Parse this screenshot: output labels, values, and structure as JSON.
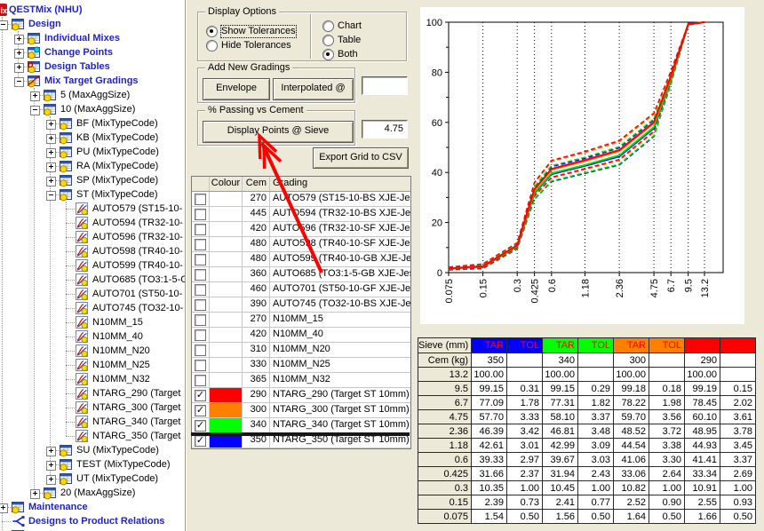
{
  "app_title": "QESTMix (NHU)",
  "colors": {
    "tree_blue": "#2222CC",
    "annotation_red": "#FF0000",
    "series_blue": "#0000FF",
    "series_green": "#00E000",
    "series_green_bright": "#00FF00",
    "series_orange": "#FF8000",
    "series_red": "#FF0000",
    "panel_beige": "#ECE9D8"
  },
  "tree": {
    "items": [
      {
        "l": 0,
        "t": "QESTMix (NHU)",
        "i": "qestmix",
        "e": null,
        "b": true
      },
      {
        "l": 1,
        "t": "Design",
        "i": "sheet",
        "e": "minus",
        "b": true
      },
      {
        "l": 2,
        "t": "Individual Mixes",
        "i": "sheet",
        "e": "plus",
        "b": true
      },
      {
        "l": 2,
        "t": "Change Points",
        "i": "sheet-cyan",
        "e": "plus",
        "b": true
      },
      {
        "l": 2,
        "t": "Design Tables",
        "i": "sheet-d",
        "e": "plus",
        "b": true
      },
      {
        "l": 2,
        "t": "Mix Target Gradings",
        "i": "sheet-curve",
        "e": "minus",
        "b": true
      },
      {
        "l": 3,
        "t": "5 (MaxAggSize)",
        "i": "sheet",
        "e": "plus",
        "b": false
      },
      {
        "l": 3,
        "t": "10 (MaxAggSize)",
        "i": "sheet",
        "e": "minus",
        "b": false
      },
      {
        "l": 4,
        "t": "BF (MixTypeCode)",
        "i": "sheet",
        "e": "plus",
        "b": false
      },
      {
        "l": 4,
        "t": "KB (MixTypeCode)",
        "i": "sheet",
        "e": "plus",
        "b": false
      },
      {
        "l": 4,
        "t": "PU (MixTypeCode)",
        "i": "sheet",
        "e": "plus",
        "b": false
      },
      {
        "l": 4,
        "t": "RA (MixTypeCode)",
        "i": "sheet",
        "e": "plus",
        "b": false
      },
      {
        "l": 4,
        "t": "SP (MixTypeCode)",
        "i": "sheet",
        "e": "plus",
        "b": false
      },
      {
        "l": 4,
        "t": "ST (MixTypeCode)",
        "i": "sheet",
        "e": "minus",
        "b": false
      },
      {
        "l": 5,
        "t": "AUTO579 (ST15-10-",
        "i": "chart",
        "e": null,
        "b": false
      },
      {
        "l": 5,
        "t": "AUTO594 (TR32-10-",
        "i": "chart",
        "e": null,
        "b": false
      },
      {
        "l": 5,
        "t": "AUTO596 (TR32-10-",
        "i": "chart",
        "e": null,
        "b": false
      },
      {
        "l": 5,
        "t": "AUTO598 (TR40-10-",
        "i": "chart",
        "e": null,
        "b": false
      },
      {
        "l": 5,
        "t": "AUTO599 (TR40-10-",
        "i": "chart",
        "e": null,
        "b": false
      },
      {
        "l": 5,
        "t": "AUTO685 (TO3:1-5-G",
        "i": "chart",
        "e": null,
        "b": false
      },
      {
        "l": 5,
        "t": "AUTO701 (ST50-10-",
        "i": "chart",
        "e": null,
        "b": false
      },
      {
        "l": 5,
        "t": "AUTO745 (TO32-10-",
        "i": "chart",
        "e": null,
        "b": false
      },
      {
        "l": 5,
        "t": "N10MM_15",
        "i": "chart",
        "e": null,
        "b": false
      },
      {
        "l": 5,
        "t": "N10MM_40",
        "i": "chart",
        "e": null,
        "b": false
      },
      {
        "l": 5,
        "t": "N10MM_N20",
        "i": "chart",
        "e": null,
        "b": false
      },
      {
        "l": 5,
        "t": "N10MM_N25",
        "i": "chart",
        "e": null,
        "b": false
      },
      {
        "l": 5,
        "t": "N10MM_N32",
        "i": "chart",
        "e": null,
        "b": false
      },
      {
        "l": 5,
        "t": "NTARG_290 (Target",
        "i": "chart",
        "e": null,
        "b": false
      },
      {
        "l": 5,
        "t": "NTARG_300 (Target",
        "i": "chart",
        "e": null,
        "b": false
      },
      {
        "l": 5,
        "t": "NTARG_340 (Target",
        "i": "chart",
        "e": null,
        "b": false
      },
      {
        "l": 5,
        "t": "NTARG_350 (Target",
        "i": "chart",
        "e": null,
        "b": false
      },
      {
        "l": 4,
        "t": "SU (MixTypeCode)",
        "i": "sheet",
        "e": "plus",
        "b": false
      },
      {
        "l": 4,
        "t": "TEST (MixTypeCode)",
        "i": "sheet",
        "e": "plus",
        "b": false
      },
      {
        "l": 4,
        "t": "UT (MixTypeCode)",
        "i": "sheet",
        "e": "plus",
        "b": false
      },
      {
        "l": 3,
        "t": "20 (MaxAggSize)",
        "i": "sheet",
        "e": "plus",
        "b": false
      },
      {
        "l": 1,
        "t": "Maintenance",
        "i": "sheet",
        "e": "plus",
        "b": true
      },
      {
        "l": 1,
        "t": "Designs to Product Relations",
        "i": "relations",
        "e": null,
        "b": true
      },
      {
        "l": 1,
        "t": "",
        "i": "sheet",
        "e": "plus",
        "b": true
      }
    ]
  },
  "panel": {
    "display_options": {
      "title": "Display Options",
      "left": [
        {
          "label": "Show Tolerances",
          "selected": true,
          "focused": true
        },
        {
          "label": "Hide Tolerances",
          "selected": false,
          "focused": false
        }
      ],
      "right": [
        {
          "label": "Chart",
          "selected": false
        },
        {
          "label": "Table",
          "selected": false
        },
        {
          "label": "Both",
          "selected": true
        }
      ]
    },
    "add_new_gradings": {
      "title": "Add New Gradings",
      "envelope_label": "Envelope",
      "interpolated_label": "Interpolated @",
      "interpolated_value": ""
    },
    "passing_vs_cement": {
      "title": "% Passing vs Cement",
      "button_label": "Display Points @ Sieve",
      "sieve_value": "4.75"
    },
    "export_button_label": "Export Grid to CSV"
  },
  "grading_grid": {
    "headers": [
      "",
      "Colour",
      "Cem",
      "Grading"
    ],
    "rows": [
      {
        "checked": false,
        "color": "",
        "cem": "270",
        "grading": "AUTO579 (ST15-10-BS XJE-Jes"
      },
      {
        "checked": false,
        "color": "",
        "cem": "445",
        "grading": "AUTO594 (TR32-10-BS XJE-Jes"
      },
      {
        "checked": false,
        "color": "",
        "cem": "420",
        "grading": "AUTO596 (TR32-10-SF XJE-Jes"
      },
      {
        "checked": false,
        "color": "",
        "cem": "480",
        "grading": "AUTO598 (TR40-10-SF XJE-Jes"
      },
      {
        "checked": false,
        "color": "",
        "cem": "480",
        "grading": "AUTO599 (TR40-10-GB XJE-Je"
      },
      {
        "checked": false,
        "color": "",
        "cem": "360",
        "grading": "AUTO685 (TO3:1-5-GB XJE-Jes"
      },
      {
        "checked": false,
        "color": "",
        "cem": "460",
        "grading": "AUTO701 (ST50-10-GF XJE-Jes"
      },
      {
        "checked": false,
        "color": "",
        "cem": "390",
        "grading": "AUTO745 (TO32-10-BS XJE-Jes"
      },
      {
        "checked": false,
        "color": "",
        "cem": "270",
        "grading": "N10MM_15"
      },
      {
        "checked": false,
        "color": "",
        "cem": "420",
        "grading": "N10MM_40"
      },
      {
        "checked": false,
        "color": "",
        "cem": "310",
        "grading": "N10MM_N20"
      },
      {
        "checked": false,
        "color": "",
        "cem": "330",
        "grading": "N10MM_N25"
      },
      {
        "checked": false,
        "color": "",
        "cem": "365",
        "grading": "N10MM_N32"
      },
      {
        "checked": true,
        "color": "#FF0000",
        "cem": "290",
        "grading": "NTARG_290 (Target ST 10mm)"
      },
      {
        "checked": true,
        "color": "#FF8000",
        "cem": "300",
        "grading": "NTARG_300 (Target ST 10mm)"
      },
      {
        "checked": true,
        "color": "#00FF00",
        "cem": "340",
        "grading": "NTARG_340 (Target ST 10mm)"
      },
      {
        "checked": true,
        "color": "#0000FF",
        "cem": "350",
        "grading": "NTARG_350 (Target ST 10mm)"
      }
    ]
  },
  "chart_data": {
    "type": "line",
    "x_scale": "log",
    "xlabel": "",
    "ylabel": "",
    "ylim": [
      0,
      100
    ],
    "y_ticks": [
      0,
      20,
      40,
      60,
      80,
      100
    ],
    "x": [
      0.075,
      0.15,
      0.3,
      0.425,
      0.6,
      1.18,
      2.36,
      4.75,
      6.7,
      9.5,
      13.2
    ],
    "x_tick_labels": [
      "0.075",
      "0.15",
      "0.3",
      "0.425",
      "0.6",
      "1.18",
      "2.36",
      "4.75",
      "6.7",
      "9.5",
      "13.2"
    ],
    "grid": "vertical-dotted",
    "legend": "none",
    "series": [
      {
        "name": "NTARG_350",
        "cem": 350,
        "color": "#0000FF",
        "target": [
          1.54,
          2.39,
          10.35,
          31.66,
          39.33,
          42.61,
          46.39,
          57.7,
          77.09,
          99.15,
          100.0
        ],
        "tol": [
          0.5,
          0.73,
          1.0,
          2.37,
          2.97,
          3.01,
          3.42,
          3.33,
          1.78,
          0.31,
          0
        ]
      },
      {
        "name": "NTARG_340",
        "cem": 340,
        "color": "#00E000",
        "target": [
          1.56,
          2.41,
          10.45,
          31.94,
          39.67,
          42.99,
          46.81,
          58.1,
          77.31,
          99.15,
          100.0
        ],
        "tol": [
          0.5,
          0.77,
          1.0,
          2.43,
          3.03,
          3.09,
          3.48,
          3.37,
          1.82,
          0.29,
          0
        ]
      },
      {
        "name": "NTARG_300",
        "cem": 300,
        "color": "#FF8000",
        "target": [
          1.64,
          2.52,
          10.82,
          33.06,
          41.06,
          44.54,
          48.52,
          59.7,
          78.22,
          99.18,
          100.0
        ],
        "tol": [
          0.5,
          0.9,
          1.0,
          2.64,
          3.3,
          3.38,
          3.72,
          3.56,
          1.98,
          0.18,
          0
        ]
      },
      {
        "name": "NTARG_290",
        "cem": 290,
        "color": "#FF0000",
        "target": [
          1.66,
          2.55,
          10.91,
          33.34,
          41.41,
          44.93,
          48.95,
          60.1,
          78.45,
          99.19,
          100.0
        ],
        "tol": [
          0.5,
          0.93,
          1.0,
          2.69,
          3.37,
          3.45,
          3.78,
          3.61,
          2.02,
          0.15,
          0
        ]
      }
    ]
  },
  "results_table": {
    "corner_label": "Sieve (mm)",
    "cem_label": "Cem (kg)",
    "tar_label": "TAR",
    "tol_label": "TOL",
    "header_text_color": "#FF0000",
    "col_groups": [
      {
        "color": "#0000FF",
        "cem": "350"
      },
      {
        "color": "#00FF00",
        "cem": "340"
      },
      {
        "color": "#FF8000",
        "cem": "300"
      },
      {
        "color": "#FF0000",
        "cem": "290"
      }
    ],
    "rows": [
      {
        "sieve": "13.2",
        "values": [
          "100.00",
          "",
          "100.00",
          "",
          "100.00",
          "",
          "100.00",
          ""
        ]
      },
      {
        "sieve": "9.5",
        "values": [
          "99.15",
          "0.31",
          "99.15",
          "0.29",
          "99.18",
          "0.18",
          "99.19",
          "0.15"
        ]
      },
      {
        "sieve": "6.7",
        "values": [
          "77.09",
          "1.78",
          "77.31",
          "1.82",
          "78.22",
          "1.98",
          "78.45",
          "2.02"
        ]
      },
      {
        "sieve": "4.75",
        "values": [
          "57.70",
          "3.33",
          "58.10",
          "3.37",
          "59.70",
          "3.56",
          "60.10",
          "3.61"
        ]
      },
      {
        "sieve": "2.36",
        "values": [
          "46.39",
          "3.42",
          "46.81",
          "3.48",
          "48.52",
          "3.72",
          "48.95",
          "3.78"
        ]
      },
      {
        "sieve": "1.18",
        "values": [
          "42.61",
          "3.01",
          "42.99",
          "3.09",
          "44.54",
          "3.38",
          "44.93",
          "3.45"
        ]
      },
      {
        "sieve": "0.6",
        "values": [
          "39.33",
          "2.97",
          "39.67",
          "3.03",
          "41.06",
          "3.30",
          "41.41",
          "3.37"
        ]
      },
      {
        "sieve": "0.425",
        "values": [
          "31.66",
          "2.37",
          "31.94",
          "2.43",
          "33.06",
          "2.64",
          "33.34",
          "2.69"
        ]
      },
      {
        "sieve": "0.3",
        "values": [
          "10.35",
          "1.00",
          "10.45",
          "1.00",
          "10.82",
          "1.00",
          "10.91",
          "1.00"
        ]
      },
      {
        "sieve": "0.15",
        "values": [
          "2.39",
          "0.73",
          "2.41",
          "0.77",
          "2.52",
          "0.90",
          "2.55",
          "0.93"
        ]
      },
      {
        "sieve": "0.075",
        "values": [
          "1.54",
          "0.50",
          "1.56",
          "0.50",
          "1.64",
          "0.50",
          "1.66",
          "0.50"
        ]
      }
    ]
  }
}
